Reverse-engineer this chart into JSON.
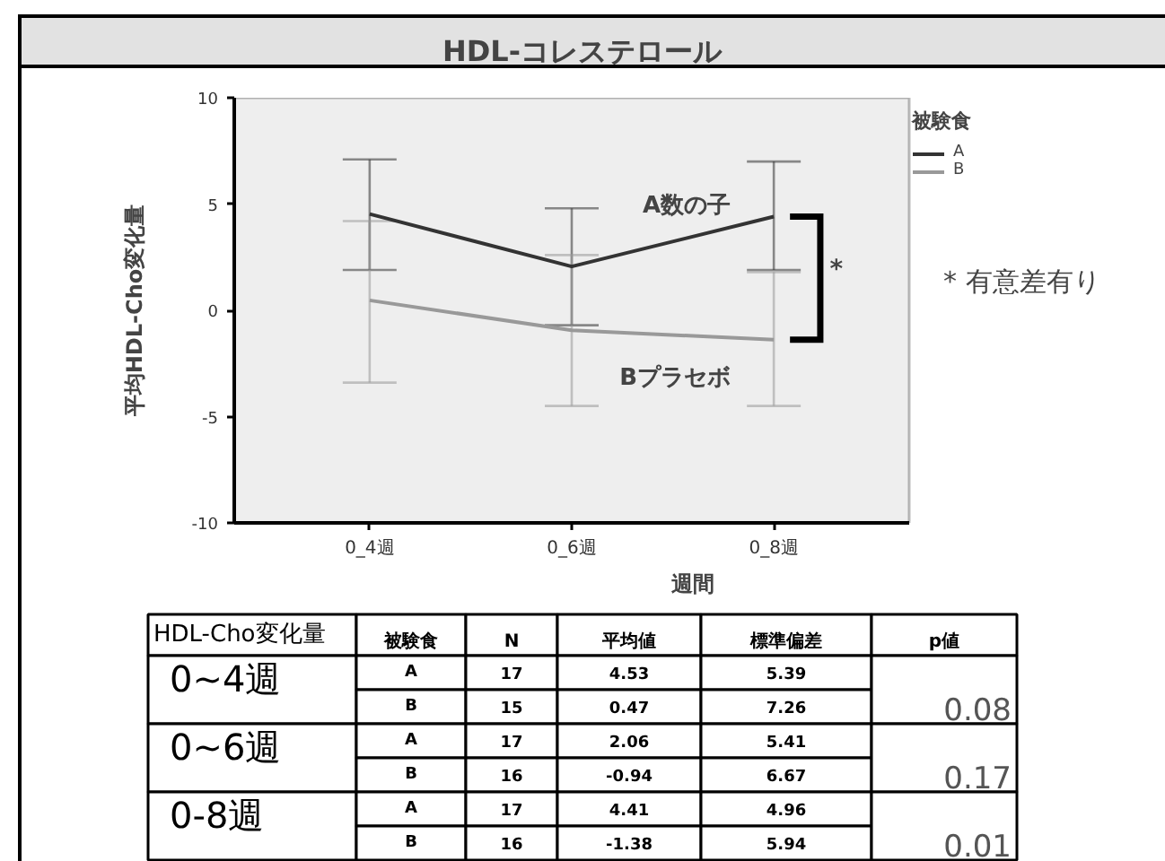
{
  "chart_data": [
    {
      "type": "line",
      "title": "HDL-コレステロール",
      "xlabel": "週間",
      "ylabel": "平均HDL-Cho変化量",
      "legend_title": "被験食",
      "legend": "top right",
      "categories": [
        "0_4週",
        "0_6週",
        "0_8週"
      ],
      "ylim": [
        -10,
        10
      ],
      "yticks": [
        -10,
        -5,
        0,
        5,
        10
      ],
      "series": [
        {
          "name": "A",
          "color": "#333333",
          "values": [
            4.53,
            2.06,
            4.41
          ],
          "errors": [
            [
              1.9,
              7.1
            ],
            [
              -0.7,
              4.8
            ],
            [
              1.9,
              7.0
            ]
          ]
        },
        {
          "name": "B",
          "color": "#999999",
          "values": [
            0.47,
            -0.94,
            -1.38
          ],
          "errors": [
            [
              -3.4,
              4.2
            ],
            [
              -4.5,
              2.6
            ],
            [
              -4.5,
              1.8
            ]
          ]
        }
      ],
      "annotations": [
        {
          "text": "A数の子",
          "x": "0_8週",
          "y": 4.9
        },
        {
          "text": "Bプラセボ",
          "x": "0_8週",
          "y": -3.2
        },
        {
          "text": "*",
          "x": "0_8週",
          "y": 1.9
        },
        "* 有意差有り"
      ]
    },
    {
      "type": "other",
      "categories": [
        "HDL-Cho変化量",
        "被験食",
        "N",
        "平均値",
        "標準偏差",
        "p値"
      ],
      "cell_labels": [
        [
          "0~4週",
          "A",
          "17",
          "4.53",
          "5.39",
          "0.08"
        ],
        [
          null,
          "B",
          "15",
          "0.47",
          "7.26",
          null
        ],
        [
          "0~6週",
          "A",
          "17",
          "2.06",
          "5.41",
          "0.17"
        ],
        [
          null,
          "B",
          "16",
          "-0.94",
          "6.67",
          null
        ],
        [
          "0-8週",
          "A",
          "17",
          "4.41",
          "4.96",
          "0.01"
        ],
        [
          null,
          "B",
          "16",
          "-1.38",
          "5.94",
          null
        ]
      ]
    }
  ]
}
